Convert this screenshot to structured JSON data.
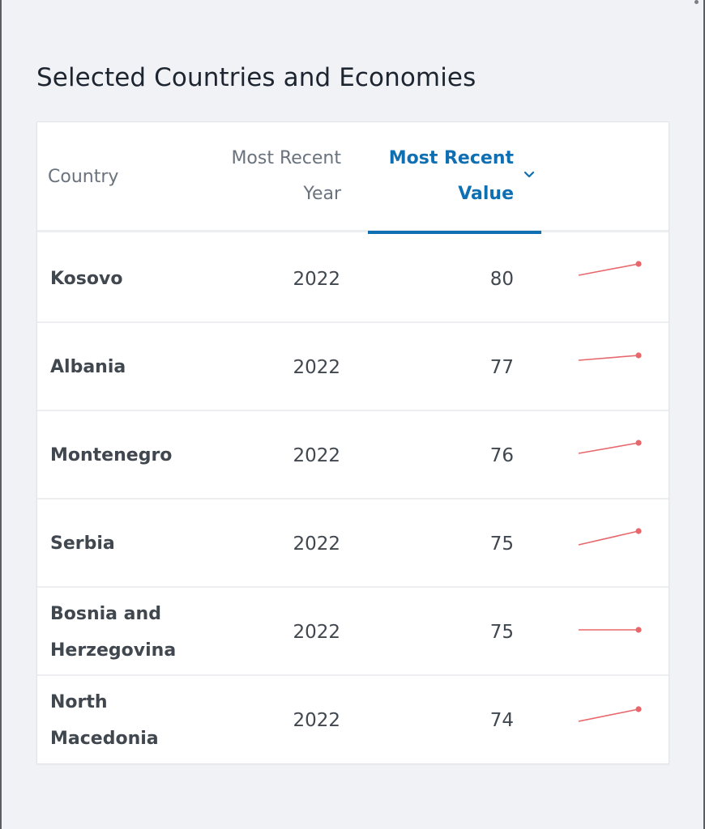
{
  "page": {
    "title": "Selected Countries and Economies"
  },
  "table": {
    "headers": {
      "country": "Country",
      "year_line1": "Most Recent",
      "year_line2": "Year",
      "value_line1": "Most Recent",
      "value_line2": "Value"
    },
    "sort_icon": "chevron-down-icon",
    "accent_color": "#0f6fb3",
    "sparkline_color": "#e8676b",
    "rows": [
      {
        "country": "Kosovo",
        "year": "2022",
        "value": "80"
      },
      {
        "country": "Albania",
        "year": "2022",
        "value": "77"
      },
      {
        "country": "Montenegro",
        "year": "2022",
        "value": "76"
      },
      {
        "country": "Serbia",
        "year": "2022",
        "value": "75"
      },
      {
        "country": "Bosnia and Herzegovina",
        "year": "2022",
        "value": "75"
      },
      {
        "country": "North Macedonia",
        "year": "2022",
        "value": "74"
      }
    ]
  }
}
